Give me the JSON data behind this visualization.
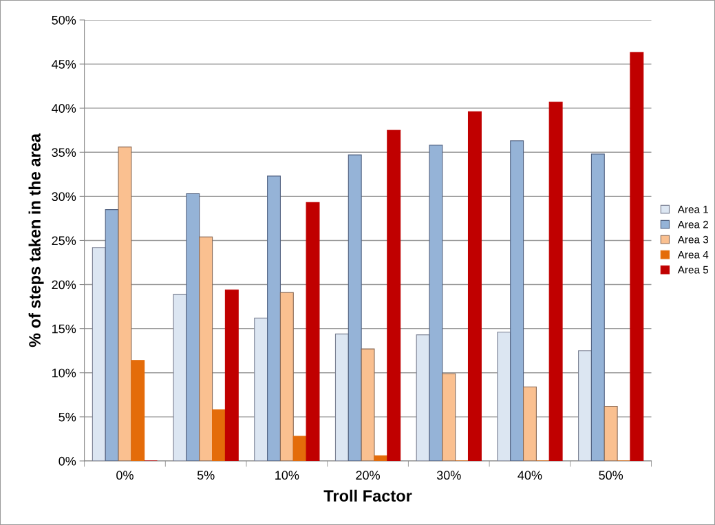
{
  "chart_data": {
    "type": "bar",
    "xlabel": "Troll Factor",
    "ylabel": "% of steps taken in the area",
    "categories": [
      "0%",
      "5%",
      "10%",
      "20%",
      "30%",
      "40%",
      "50%"
    ],
    "series": [
      {
        "name": "Area 1",
        "color": "#dce6f2",
        "values": [
          24.2,
          18.9,
          16.2,
          14.4,
          14.3,
          14.6,
          12.5
        ]
      },
      {
        "name": "Area 2",
        "color": "#95b3d7",
        "values": [
          28.5,
          30.3,
          32.3,
          34.7,
          35.8,
          36.3,
          34.8
        ]
      },
      {
        "name": "Area 3",
        "color": "#fac090",
        "values": [
          35.6,
          25.4,
          19.1,
          12.7,
          9.9,
          8.4,
          6.2
        ]
      },
      {
        "name": "Area 4",
        "color": "#e46c0a",
        "values": [
          11.4,
          5.8,
          2.8,
          0.6,
          0,
          0,
          0
        ]
      },
      {
        "name": "Area 5",
        "color": "#c00000",
        "values": [
          0,
          19.4,
          29.3,
          37.5,
          39.6,
          40.7,
          46.3
        ]
      }
    ],
    "ylim": [
      0,
      50
    ],
    "yticks": [
      {
        "value": 0,
        "label": "0%"
      },
      {
        "value": 5,
        "label": "5%"
      },
      {
        "value": 10,
        "label": "10%"
      },
      {
        "value": 15,
        "label": "15%"
      },
      {
        "value": 20,
        "label": "20%"
      },
      {
        "value": 25,
        "label": "25%"
      },
      {
        "value": 30,
        "label": "30%"
      },
      {
        "value": 35,
        "label": "35%"
      },
      {
        "value": 40,
        "label": "40%"
      },
      {
        "value": 45,
        "label": "45%"
      },
      {
        "value": 50,
        "label": "50%"
      }
    ],
    "grid": "y",
    "legend": "right"
  }
}
